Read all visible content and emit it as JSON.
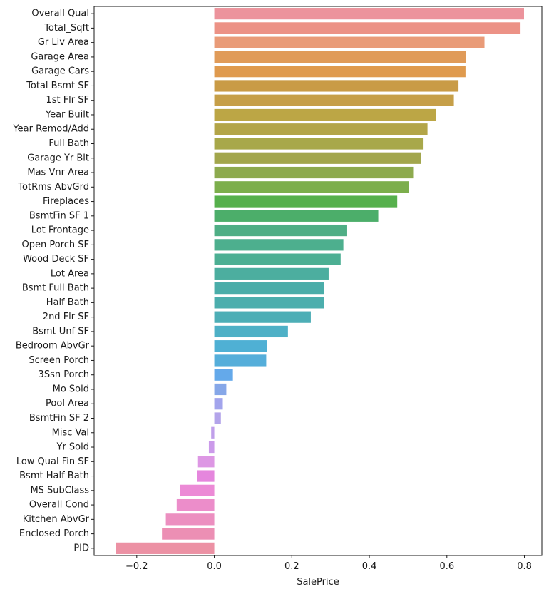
{
  "chart_data": {
    "type": "bar",
    "orientation": "horizontal",
    "title": "",
    "xlabel": "SalePrice",
    "ylabel": "",
    "xlim": [
      -0.31,
      0.845
    ],
    "xticks": [
      -0.2,
      0.0,
      0.2,
      0.4,
      0.6,
      0.8
    ],
    "xtick_labels": [
      "−0.2",
      "0.0",
      "0.2",
      "0.4",
      "0.6",
      "0.8"
    ],
    "grid": false,
    "categories": [
      "Overall Qual",
      "Total_Sqft",
      "Gr Liv Area",
      "Garage Area",
      "Garage Cars",
      "Total Bsmt SF",
      "1st Flr SF",
      "Year Built",
      "Year Remod/Add",
      "Full Bath",
      "Garage Yr Blt",
      "Mas Vnr Area",
      "TotRms AbvGrd",
      "Fireplaces",
      "BsmtFin SF 1",
      "Lot Frontage",
      "Open Porch SF",
      "Wood Deck SF",
      "Lot Area",
      "Bsmt Full Bath",
      "Half Bath",
      "2nd Flr SF",
      "Bsmt Unf SF",
      "Bedroom AbvGr",
      "Screen Porch",
      "3Ssn Porch",
      "Mo Sold",
      "Pool Area",
      "BsmtFin SF 2",
      "Misc Val",
      "Yr Sold",
      "Low Qual Fin SF",
      "Bsmt Half Bath",
      "MS SubClass",
      "Overall Cond",
      "Kitchen AbvGr",
      "Enclosed Porch",
      "PID"
    ],
    "values": [
      0.799,
      0.79,
      0.697,
      0.65,
      0.648,
      0.63,
      0.618,
      0.572,
      0.55,
      0.538,
      0.534,
      0.513,
      0.502,
      0.472,
      0.423,
      0.341,
      0.333,
      0.326,
      0.295,
      0.284,
      0.283,
      0.249,
      0.19,
      0.136,
      0.134,
      0.048,
      0.031,
      0.022,
      0.017,
      -0.008,
      -0.014,
      -0.042,
      -0.045,
      -0.088,
      -0.097,
      -0.125,
      -0.135,
      -0.254
    ],
    "colors": [
      "#ec939c",
      "#ec9286",
      "#e99b78",
      "#e09b59",
      "#df9a4e",
      "#c99b46",
      "#c69f48",
      "#bca645",
      "#b3a548",
      "#a8a84a",
      "#a2a64c",
      "#8daa4e",
      "#7cae4c",
      "#56b04c",
      "#4cae6a",
      "#4fae85",
      "#4daf8e",
      "#4caf93",
      "#4cae9f",
      "#4aada9",
      "#4caead",
      "#4daeb6",
      "#4eb0c6",
      "#4fb0d4",
      "#55aeda",
      "#64a9ea",
      "#86a7e8",
      "#a2a4ec",
      "#b3a4ea",
      "#c09fea",
      "#cb9aea",
      "#dd97e4",
      "#e586dd",
      "#ec8ad6",
      "#ec8dca",
      "#ec8fc0",
      "#ec8fb4",
      "#ec91a4"
    ]
  }
}
